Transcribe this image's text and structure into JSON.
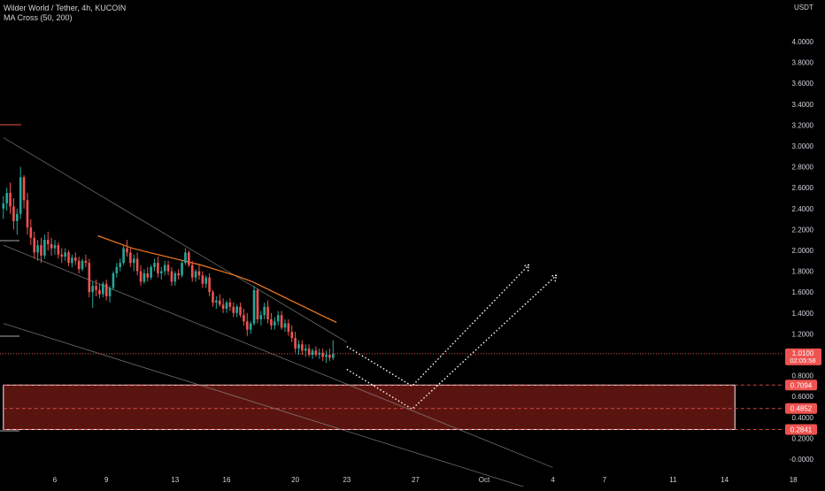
{
  "header": {
    "title": "Wilder World / Tether, 4h, KUCOIN",
    "indicator": "MA Cross (50, 200)",
    "currency": "USDT"
  },
  "price_badge": {
    "price": "1.0100",
    "countdown": "02:05:58"
  },
  "colors": {
    "background": "#000000",
    "up": "#26a69a",
    "down": "#ef5350",
    "ma": "#f57c1f",
    "zone_fill": "#5a1410",
    "level_badge": "#ef5350",
    "text": "#d1d4dc",
    "channel": "#8a8a8a",
    "projection": "#ffffff"
  },
  "chart_data": {
    "type": "candlestick",
    "title": "Wilder World / Tether, 4h, KUCOIN",
    "y_axis": {
      "ticks": [
        "4.0000",
        "3.8000",
        "3.6000",
        "3.4000",
        "3.2000",
        "3.0000",
        "2.8000",
        "2.6000",
        "2.4000",
        "2.2000",
        "2.0000",
        "1.8000",
        "1.6000",
        "1.4000",
        "1.2000",
        "0.8000",
        "0.6000",
        "0.4000",
        "0.2000",
        "-0.0000"
      ],
      "range": [
        -0.05,
        4.35
      ]
    },
    "x_axis": {
      "ticks": [
        {
          "label": "6",
          "day": 6
        },
        {
          "label": "9",
          "day": 9
        },
        {
          "label": "13",
          "day": 13
        },
        {
          "label": "16",
          "day": 16
        },
        {
          "label": "20",
          "day": 20
        },
        {
          "label": "23",
          "day": 23
        },
        {
          "label": "27",
          "day": 27
        },
        {
          "label": "Oct",
          "day": 31
        },
        {
          "label": "4",
          "day": 35
        },
        {
          "label": "7",
          "day": 38
        },
        {
          "label": "11",
          "day": 42
        },
        {
          "label": "14",
          "day": 45
        },
        {
          "label": "18",
          "day": 49
        }
      ]
    },
    "last_price": 1.01,
    "levels": [
      {
        "label": "0.7094",
        "value": 0.7094
      },
      {
        "label": "0.4852",
        "value": 0.4852
      },
      {
        "label": "0.2841",
        "value": 0.2841
      }
    ],
    "demand_zone": {
      "top": 0.7094,
      "bottom": 0.2841,
      "from_day": 3,
      "to_day": 45.6
    },
    "channel": {
      "upper": [
        [
          3.0,
          3.08
        ],
        [
          23.0,
          1.12
        ]
      ],
      "middle": [
        [
          3.0,
          2.05
        ],
        [
          35.0,
          -0.08
        ]
      ],
      "lower": [
        [
          3.0,
          1.3
        ],
        [
          34.0,
          -0.3
        ]
      ]
    },
    "projections": [
      [
        [
          23.0,
          1.08
        ],
        [
          26.8,
          0.7
        ],
        [
          33.6,
          1.86
        ]
      ],
      [
        [
          23.0,
          0.86
        ],
        [
          26.8,
          0.48
        ],
        [
          35.2,
          1.76
        ]
      ]
    ],
    "ma_series": [
      [
        8.5,
        2.14
      ],
      [
        9.5,
        2.08
      ],
      [
        10.5,
        2.02
      ],
      [
        11.5,
        1.98
      ],
      [
        12.5,
        1.94
      ],
      [
        13.5,
        1.9
      ],
      [
        14.5,
        1.86
      ],
      [
        15.5,
        1.81
      ],
      [
        16.5,
        1.76
      ],
      [
        17.5,
        1.7
      ],
      [
        18.5,
        1.62
      ],
      [
        19.5,
        1.54
      ],
      [
        20.5,
        1.46
      ],
      [
        21.5,
        1.38
      ],
      [
        22.4,
        1.31
      ]
    ],
    "candles": [
      [
        3.0,
        2.4,
        2.52,
        2.3,
        2.45
      ],
      [
        3.2,
        2.45,
        2.6,
        2.38,
        2.55
      ],
      [
        3.4,
        2.55,
        2.65,
        2.35,
        2.42
      ],
      [
        3.6,
        2.42,
        2.5,
        2.2,
        2.28
      ],
      [
        3.8,
        2.28,
        2.4,
        2.15,
        2.35
      ],
      [
        4.0,
        2.35,
        2.8,
        2.3,
        2.7
      ],
      [
        4.2,
        2.7,
        2.72,
        2.4,
        2.48
      ],
      [
        4.4,
        2.48,
        2.55,
        2.15,
        2.22
      ],
      [
        4.6,
        2.22,
        2.3,
        2.05,
        2.12
      ],
      [
        4.8,
        2.12,
        2.18,
        1.92,
        1.98
      ],
      [
        5.0,
        1.98,
        2.1,
        1.9,
        2.05
      ],
      [
        5.2,
        2.05,
        2.12,
        1.88,
        1.95
      ],
      [
        5.4,
        1.95,
        2.15,
        1.92,
        2.1
      ],
      [
        5.6,
        2.1,
        2.18,
        2.0,
        2.06
      ],
      [
        5.8,
        2.06,
        2.12,
        1.95,
        2.02
      ],
      [
        6.0,
        2.02,
        2.1,
        1.96,
        2.05
      ],
      [
        6.2,
        2.05,
        2.08,
        1.92,
        1.96
      ],
      [
        6.4,
        1.96,
        2.02,
        1.88,
        1.94
      ],
      [
        6.6,
        1.94,
        2.02,
        1.9,
        1.98
      ],
      [
        6.8,
        1.98,
        2.0,
        1.85,
        1.88
      ],
      [
        7.0,
        1.88,
        1.96,
        1.84,
        1.93
      ],
      [
        7.2,
        1.93,
        1.98,
        1.86,
        1.9
      ],
      [
        7.4,
        1.9,
        1.94,
        1.78,
        1.82
      ],
      [
        7.6,
        1.82,
        1.92,
        1.8,
        1.9
      ],
      [
        7.8,
        1.9,
        1.96,
        1.84,
        1.88
      ],
      [
        8.0,
        1.88,
        1.92,
        1.55,
        1.6
      ],
      [
        8.2,
        1.6,
        1.7,
        1.45,
        1.66
      ],
      [
        8.4,
        1.66,
        1.72,
        1.56,
        1.62
      ],
      [
        8.6,
        1.62,
        1.68,
        1.54,
        1.58
      ],
      [
        8.8,
        1.58,
        1.7,
        1.55,
        1.68
      ],
      [
        9.0,
        1.68,
        1.72,
        1.52,
        1.56
      ],
      [
        9.2,
        1.56,
        1.66,
        1.5,
        1.64
      ],
      [
        9.4,
        1.64,
        1.8,
        1.62,
        1.78
      ],
      [
        9.6,
        1.78,
        1.88,
        1.74,
        1.84
      ],
      [
        9.8,
        1.84,
        1.92,
        1.8,
        1.88
      ],
      [
        10.0,
        1.88,
        2.05,
        1.86,
        2.02
      ],
      [
        10.2,
        2.02,
        2.1,
        1.94,
        1.98
      ],
      [
        10.4,
        1.98,
        2.02,
        1.84,
        1.88
      ],
      [
        10.6,
        1.88,
        1.96,
        1.8,
        1.92
      ],
      [
        10.8,
        1.92,
        1.98,
        1.76,
        1.8
      ],
      [
        11.0,
        1.8,
        1.86,
        1.66,
        1.7
      ],
      [
        11.2,
        1.7,
        1.82,
        1.68,
        1.78
      ],
      [
        11.4,
        1.78,
        1.84,
        1.7,
        1.74
      ],
      [
        11.6,
        1.74,
        1.86,
        1.72,
        1.84
      ],
      [
        11.8,
        1.84,
        1.92,
        1.8,
        1.88
      ],
      [
        12.0,
        1.88,
        1.94,
        1.74,
        1.78
      ],
      [
        12.2,
        1.78,
        1.84,
        1.72,
        1.8
      ],
      [
        12.4,
        1.8,
        1.9,
        1.76,
        1.86
      ],
      [
        12.6,
        1.86,
        1.9,
        1.76,
        1.8
      ],
      [
        12.8,
        1.8,
        1.84,
        1.66,
        1.7
      ],
      [
        13.0,
        1.7,
        1.8,
        1.66,
        1.78
      ],
      [
        13.2,
        1.78,
        1.82,
        1.72,
        1.76
      ],
      [
        13.4,
        1.76,
        1.9,
        1.74,
        1.88
      ],
      [
        13.6,
        1.88,
        2.02,
        1.86,
        1.98
      ],
      [
        13.8,
        1.98,
        2.0,
        1.84,
        1.86
      ],
      [
        14.0,
        1.86,
        1.9,
        1.7,
        1.74
      ],
      [
        14.2,
        1.74,
        1.82,
        1.7,
        1.8
      ],
      [
        14.4,
        1.8,
        1.86,
        1.72,
        1.76
      ],
      [
        14.6,
        1.76,
        1.8,
        1.64,
        1.68
      ],
      [
        14.8,
        1.68,
        1.76,
        1.64,
        1.74
      ],
      [
        15.0,
        1.74,
        1.78,
        1.56,
        1.6
      ],
      [
        15.2,
        1.6,
        1.62,
        1.46,
        1.5
      ],
      [
        15.4,
        1.5,
        1.56,
        1.44,
        1.52
      ],
      [
        15.6,
        1.52,
        1.58,
        1.46,
        1.48
      ],
      [
        15.8,
        1.48,
        1.54,
        1.4,
        1.44
      ],
      [
        16.0,
        1.44,
        1.52,
        1.4,
        1.5
      ],
      [
        16.2,
        1.5,
        1.54,
        1.42,
        1.46
      ],
      [
        16.4,
        1.46,
        1.5,
        1.36,
        1.4
      ],
      [
        16.6,
        1.4,
        1.48,
        1.36,
        1.46
      ],
      [
        16.8,
        1.46,
        1.5,
        1.36,
        1.38
      ],
      [
        17.0,
        1.38,
        1.44,
        1.28,
        1.32
      ],
      [
        17.2,
        1.32,
        1.4,
        1.18,
        1.24
      ],
      [
        17.4,
        1.24,
        1.32,
        1.2,
        1.3
      ],
      [
        17.6,
        1.3,
        1.66,
        1.28,
        1.62
      ],
      [
        17.8,
        1.62,
        1.64,
        1.3,
        1.34
      ],
      [
        18.0,
        1.34,
        1.42,
        1.28,
        1.38
      ],
      [
        18.2,
        1.38,
        1.5,
        1.34,
        1.46
      ],
      [
        18.4,
        1.46,
        1.52,
        1.3,
        1.34
      ],
      [
        18.6,
        1.34,
        1.4,
        1.24,
        1.28
      ],
      [
        18.8,
        1.28,
        1.36,
        1.24,
        1.32
      ],
      [
        19.0,
        1.32,
        1.42,
        1.28,
        1.38
      ],
      [
        19.2,
        1.38,
        1.42,
        1.24,
        1.26
      ],
      [
        19.4,
        1.26,
        1.34,
        1.22,
        1.3
      ],
      [
        19.6,
        1.3,
        1.34,
        1.18,
        1.22
      ],
      [
        19.8,
        1.22,
        1.28,
        1.12,
        1.16
      ],
      [
        20.0,
        1.16,
        1.22,
        1.02,
        1.06
      ],
      [
        20.2,
        1.06,
        1.14,
        1.0,
        1.1
      ],
      [
        20.4,
        1.1,
        1.14,
        1.0,
        1.04
      ],
      [
        20.6,
        1.04,
        1.1,
        0.98,
        1.06
      ],
      [
        20.8,
        1.06,
        1.1,
        0.98,
        1.0
      ],
      [
        21.0,
        1.0,
        1.06,
        0.96,
        1.04
      ],
      [
        21.2,
        1.04,
        1.08,
        0.98,
        1.0
      ],
      [
        21.4,
        1.0,
        1.06,
        0.96,
        1.02
      ],
      [
        21.6,
        1.02,
        1.06,
        0.94,
        0.98
      ],
      [
        21.8,
        0.98,
        1.04,
        0.92,
        1.0
      ],
      [
        22.0,
        1.0,
        1.06,
        0.94,
        0.97
      ],
      [
        22.2,
        0.97,
        1.14,
        0.95,
        1.01
      ]
    ]
  }
}
